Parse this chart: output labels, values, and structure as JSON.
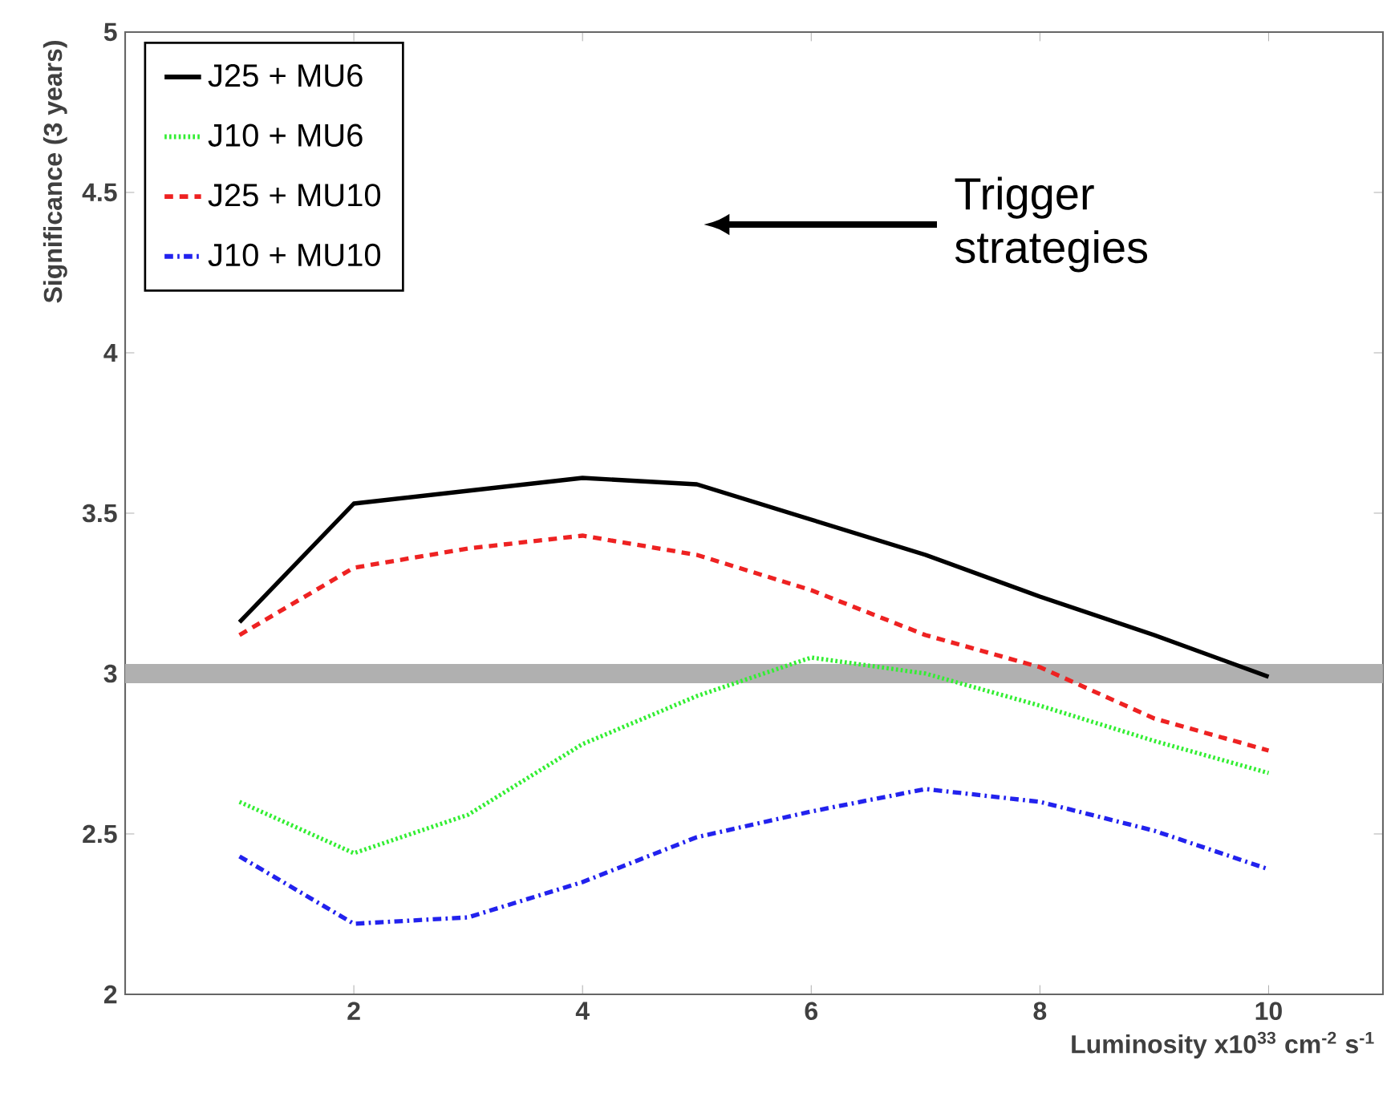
{
  "chart_data": {
    "type": "line",
    "xlabel": "Luminosity x10$^{33}$ cm$^{-2}$ s$^{-1}$",
    "ylabel": "Significance (3 years)",
    "x": [
      1,
      2,
      3,
      4,
      5,
      6,
      7,
      8,
      9,
      10
    ],
    "series": [
      {
        "name": "J25 + MU6",
        "color": "#000000",
        "line_style": "solid",
        "values": [
          3.16,
          3.53,
          3.57,
          3.61,
          3.59,
          3.48,
          3.37,
          3.24,
          3.12,
          2.99
        ]
      },
      {
        "name": "J10 + MU6",
        "color": "#33ee33",
        "line_style": "dotted",
        "values": [
          2.6,
          2.44,
          2.56,
          2.78,
          2.93,
          3.05,
          3.0,
          2.9,
          2.79,
          2.69
        ]
      },
      {
        "name": "J25 + MU10",
        "color": "#ee2222",
        "line_style": "dashed",
        "values": [
          3.12,
          3.33,
          3.39,
          3.43,
          3.37,
          3.26,
          3.12,
          3.02,
          2.86,
          2.76
        ]
      },
      {
        "name": "J10 + MU10",
        "color": "#2222ee",
        "line_style": "dashdot",
        "values": [
          2.43,
          2.22,
          2.24,
          2.35,
          2.49,
          2.57,
          2.64,
          2.6,
          2.51,
          2.39
        ]
      }
    ],
    "xlim": [
      0,
      11
    ],
    "ylim": [
      2,
      5
    ],
    "xticks": [
      2,
      4,
      6,
      8,
      10
    ],
    "yticks": [
      2,
      2.5,
      3,
      3.5,
      4,
      4.5,
      5
    ],
    "bands": [
      {
        "axis": "y",
        "from": 2.97,
        "to": 3.03,
        "color": "#b0b0b0"
      }
    ],
    "annotations": [
      "Trigger strategies"
    ],
    "legend": "top left",
    "grid": false,
    "marker": "none"
  }
}
